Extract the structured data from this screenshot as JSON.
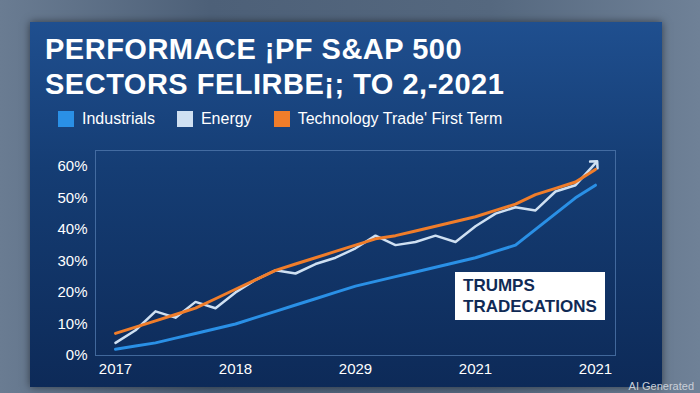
{
  "chart_data": {
    "type": "line",
    "title": "PERFORMACE ¡PF S&AP 500\nSECTORS FELIRBE¡; TO 2,-2021",
    "categories": [
      "2017",
      null,
      null,
      null,
      null,
      null,
      "2018",
      null,
      null,
      null,
      null,
      null,
      "2029",
      null,
      null,
      null,
      null,
      null,
      "2021",
      null,
      null,
      null,
      null,
      null,
      "2021"
    ],
    "series": [
      {
        "name": "Industrials",
        "color": "#2a90e6",
        "values": [
          2,
          3,
          4,
          5.5,
          7,
          8.5,
          10,
          12,
          14,
          16,
          18,
          20,
          22,
          23.5,
          25,
          26.5,
          28,
          29.5,
          31,
          33,
          35,
          40,
          45,
          50,
          54
        ]
      },
      {
        "name": "Energy",
        "color": "#cfe0f2",
        "marker": "arrow",
        "values": [
          4,
          8,
          14,
          12,
          17,
          15,
          20,
          24,
          27,
          26,
          29,
          31,
          34,
          38,
          35,
          36,
          38,
          36,
          41,
          45,
          47,
          46,
          52,
          54,
          61
        ]
      },
      {
        "name": "Technology Trade' First Term",
        "color": "#f07d2a",
        "values": [
          7,
          9,
          11,
          13,
          15,
          18,
          21,
          24,
          27,
          29,
          31,
          33,
          35,
          37,
          38,
          39.5,
          41,
          42.5,
          44,
          46,
          48,
          51,
          53,
          55,
          59
        ]
      }
    ],
    "ylim": [
      0,
      65
    ],
    "yticks": [
      {
        "value": 0,
        "label": "0%"
      },
      {
        "value": 10,
        "label": "10%"
      },
      {
        "value": 20,
        "label": "20%"
      },
      {
        "value": 30,
        "label": "30%"
      },
      {
        "value": 40,
        "label": "40%"
      },
      {
        "value": 50,
        "label": "50%"
      },
      {
        "value": 60,
        "label": "60%"
      }
    ],
    "grid": false,
    "legend": "top-left",
    "annotations": [
      "TRUMPS\nTRADECATIONS",
      "AI Generated"
    ]
  }
}
